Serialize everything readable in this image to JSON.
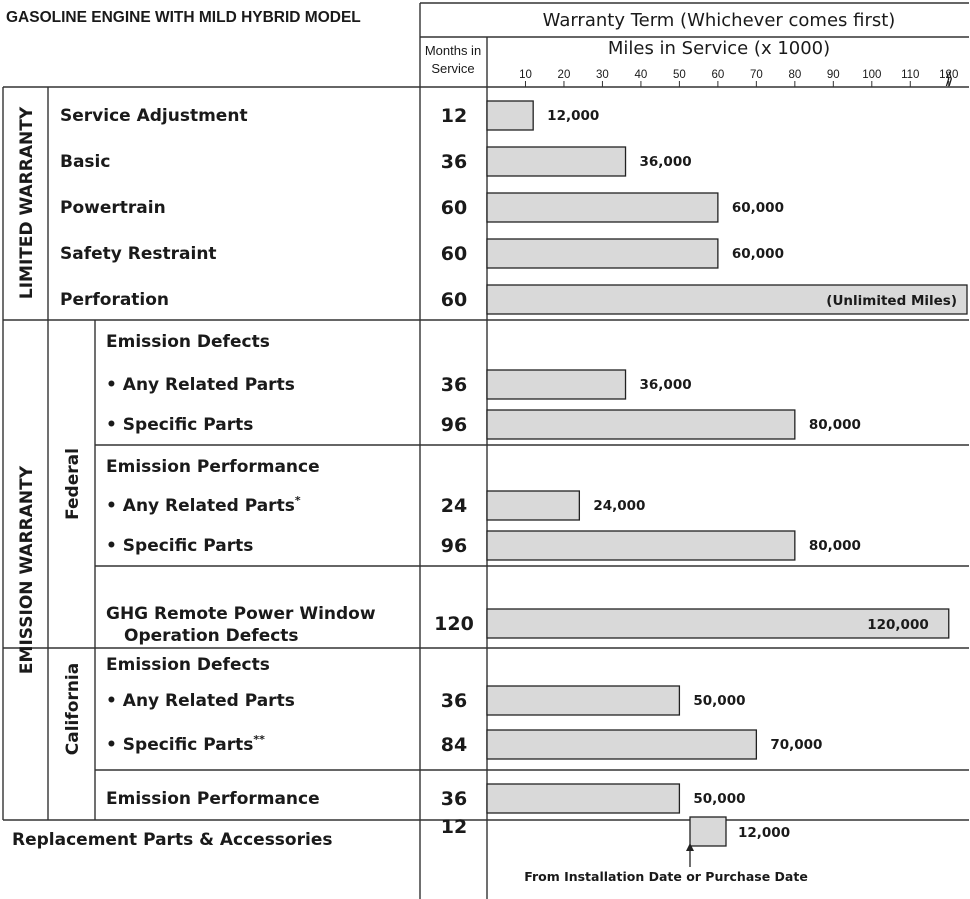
{
  "title": "GASOLINE ENGINE WITH MILD HYBRID MODEL",
  "header": {
    "warranty_term": "Warranty Term (Whichever comes first)",
    "months_line1": "Months in",
    "months_line2": "Service",
    "miles": "Miles in Service (x 1000)",
    "ticks": [
      "10",
      "20",
      "30",
      "40",
      "50",
      "60",
      "70",
      "80",
      "90",
      "100",
      "110",
      "120"
    ],
    "break_mark": "⟫"
  },
  "sections": {
    "limited": "LIMITED WARRANTY",
    "emission": "EMISSION WARRANTY",
    "federal": "Federal",
    "california": "California"
  },
  "group_headings": {
    "fed_defects": "Emission Defects",
    "fed_performance": "Emission Performance",
    "ca_defects": "Emission Defects"
  },
  "rows": [
    {
      "label": "Service Adjustment",
      "months": "12",
      "miles": 12,
      "value_label": "12,000"
    },
    {
      "label": "Basic",
      "months": "36",
      "miles": 36,
      "value_label": "36,000"
    },
    {
      "label": "Powertrain",
      "months": "60",
      "miles": 60,
      "value_label": "60,000"
    },
    {
      "label": "Safety Restraint",
      "months": "60",
      "miles": 60,
      "value_label": "60,000"
    },
    {
      "label": "Perforation",
      "months": "60",
      "miles": 125,
      "value_label": "(Unlimited Miles)"
    },
    {
      "label": "• Any Related Parts",
      "months": "36",
      "miles": 36,
      "value_label": "36,000"
    },
    {
      "label": "• Specific Parts",
      "months": "96",
      "miles": 80,
      "value_label": "80,000"
    },
    {
      "label": "• Any Related Parts",
      "label_sup": "*",
      "months": "24",
      "miles": 24,
      "value_label": "24,000"
    },
    {
      "label": "• Specific Parts",
      "months": "96",
      "miles": 80,
      "value_label": "80,000"
    },
    {
      "label": "GHG Remote Power Window",
      "label2": "Operation Defects",
      "months": "120",
      "miles": 120,
      "value_label": "120,000"
    },
    {
      "label": "• Any Related Parts",
      "months": "36",
      "miles": 50,
      "value_label": "50,000"
    },
    {
      "label": "• Specific Parts",
      "label_sup": "**",
      "months": "84",
      "miles": 70,
      "value_label": "70,000"
    },
    {
      "label": "Emission Performance",
      "months": "36",
      "miles": 50,
      "value_label": "50,000"
    },
    {
      "label": "Replacement Parts & Accessories",
      "months": "12",
      "miles": 12,
      "value_label": "12,000",
      "note": "From Installation Date or Purchase Date"
    }
  ]
}
